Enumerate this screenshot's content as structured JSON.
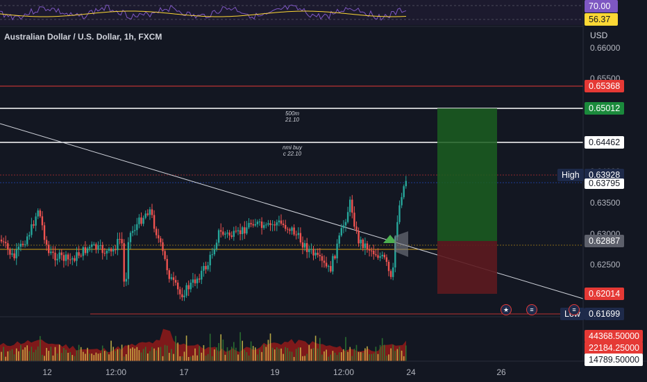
{
  "symbol_title": "Australian Dollar / U.S. Dollar, 1h, FXCM",
  "currency": "USD",
  "rsi": {
    "value_top": "70.00",
    "value_bottom": "56.37"
  },
  "price_axis": {
    "ticks": [
      "0.66000",
      "0.65500",
      "0.65000",
      "0.64500",
      "0.64000",
      "0.63500",
      "0.63000",
      "0.62500"
    ],
    "tags": {
      "red_line": "0.65368",
      "take_profit": "0.65012",
      "white_line": "0.64462",
      "high_label": "High",
      "high_value": "0.63928",
      "last_price": "0.63795",
      "entry": "0.62887",
      "stop": "0.62014",
      "low_label": "Low",
      "low_value": "0.61699"
    }
  },
  "annotations": {
    "line1_top": "500m",
    "line1_bottom": "21.10",
    "line2_top": "nmi buy",
    "line2_bottom": "c 22.10"
  },
  "volume_axis": {
    "v1": "44368.50000",
    "v2": "22184.25000",
    "v3": "14789.50000"
  },
  "time_axis": [
    "12",
    "12:00",
    "17",
    "19",
    "12:00",
    "24",
    "26"
  ],
  "colors": {
    "up": "#26a69a",
    "down": "#ef5350",
    "bg": "#131722",
    "tp": "#1b5e20",
    "sl": "#5d1a1f"
  },
  "icons": [
    "au-flag-icon",
    "us-flag-icon",
    "us-flag-icon"
  ]
}
